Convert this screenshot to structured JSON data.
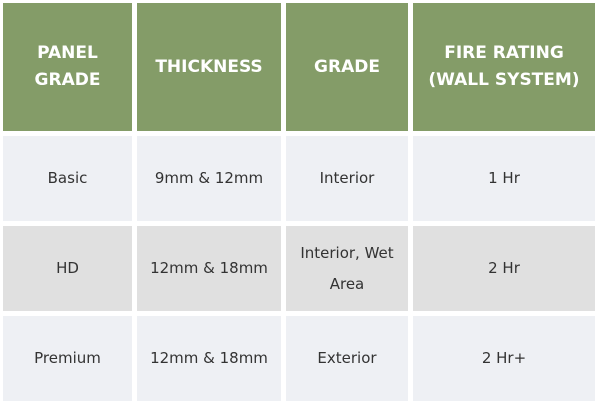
{
  "table": {
    "headers": [
      "PANEL GRADE",
      "THICKNESS",
      "GRADE",
      "FIRE RATING (WALL SYSTEM)"
    ],
    "rows": [
      [
        "Basic",
        "9mm & 12mm",
        "Interior",
        "1 Hr"
      ],
      [
        "HD",
        "12mm & 18mm",
        "Interior, Wet Area",
        "2 Hr"
      ],
      [
        "Premium",
        "12mm & 18mm",
        "Exterior",
        "2 Hr+"
      ]
    ]
  },
  "colors": {
    "header_bg": "#849c68",
    "row_light": "#eef0f4",
    "row_gray": "#e0e0e0"
  }
}
